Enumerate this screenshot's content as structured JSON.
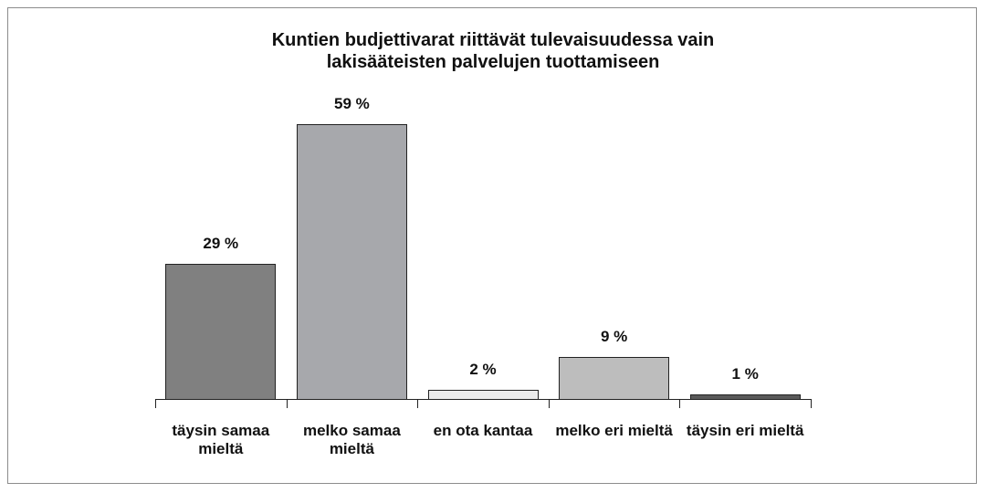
{
  "chart_data": {
    "type": "bar",
    "title": "Kuntien budjettivarat riittävät tulevaisuudessa vain lakisääteisten palvelujen tuottamiseen",
    "categories": [
      "täysin samaa mieltä",
      "melko samaa mieltä",
      "en ota kantaa",
      "melko eri mieltä",
      "täysin eri mieltä"
    ],
    "values": [
      29,
      59,
      2,
      9,
      1
    ],
    "value_labels": [
      "29 %",
      "59 %",
      "2 %",
      "9 %",
      "1 %"
    ],
    "colors": [
      "#808080",
      "#a7a8ac",
      "#ececec",
      "#bdbdbd",
      "#5a5a5a"
    ]
  }
}
